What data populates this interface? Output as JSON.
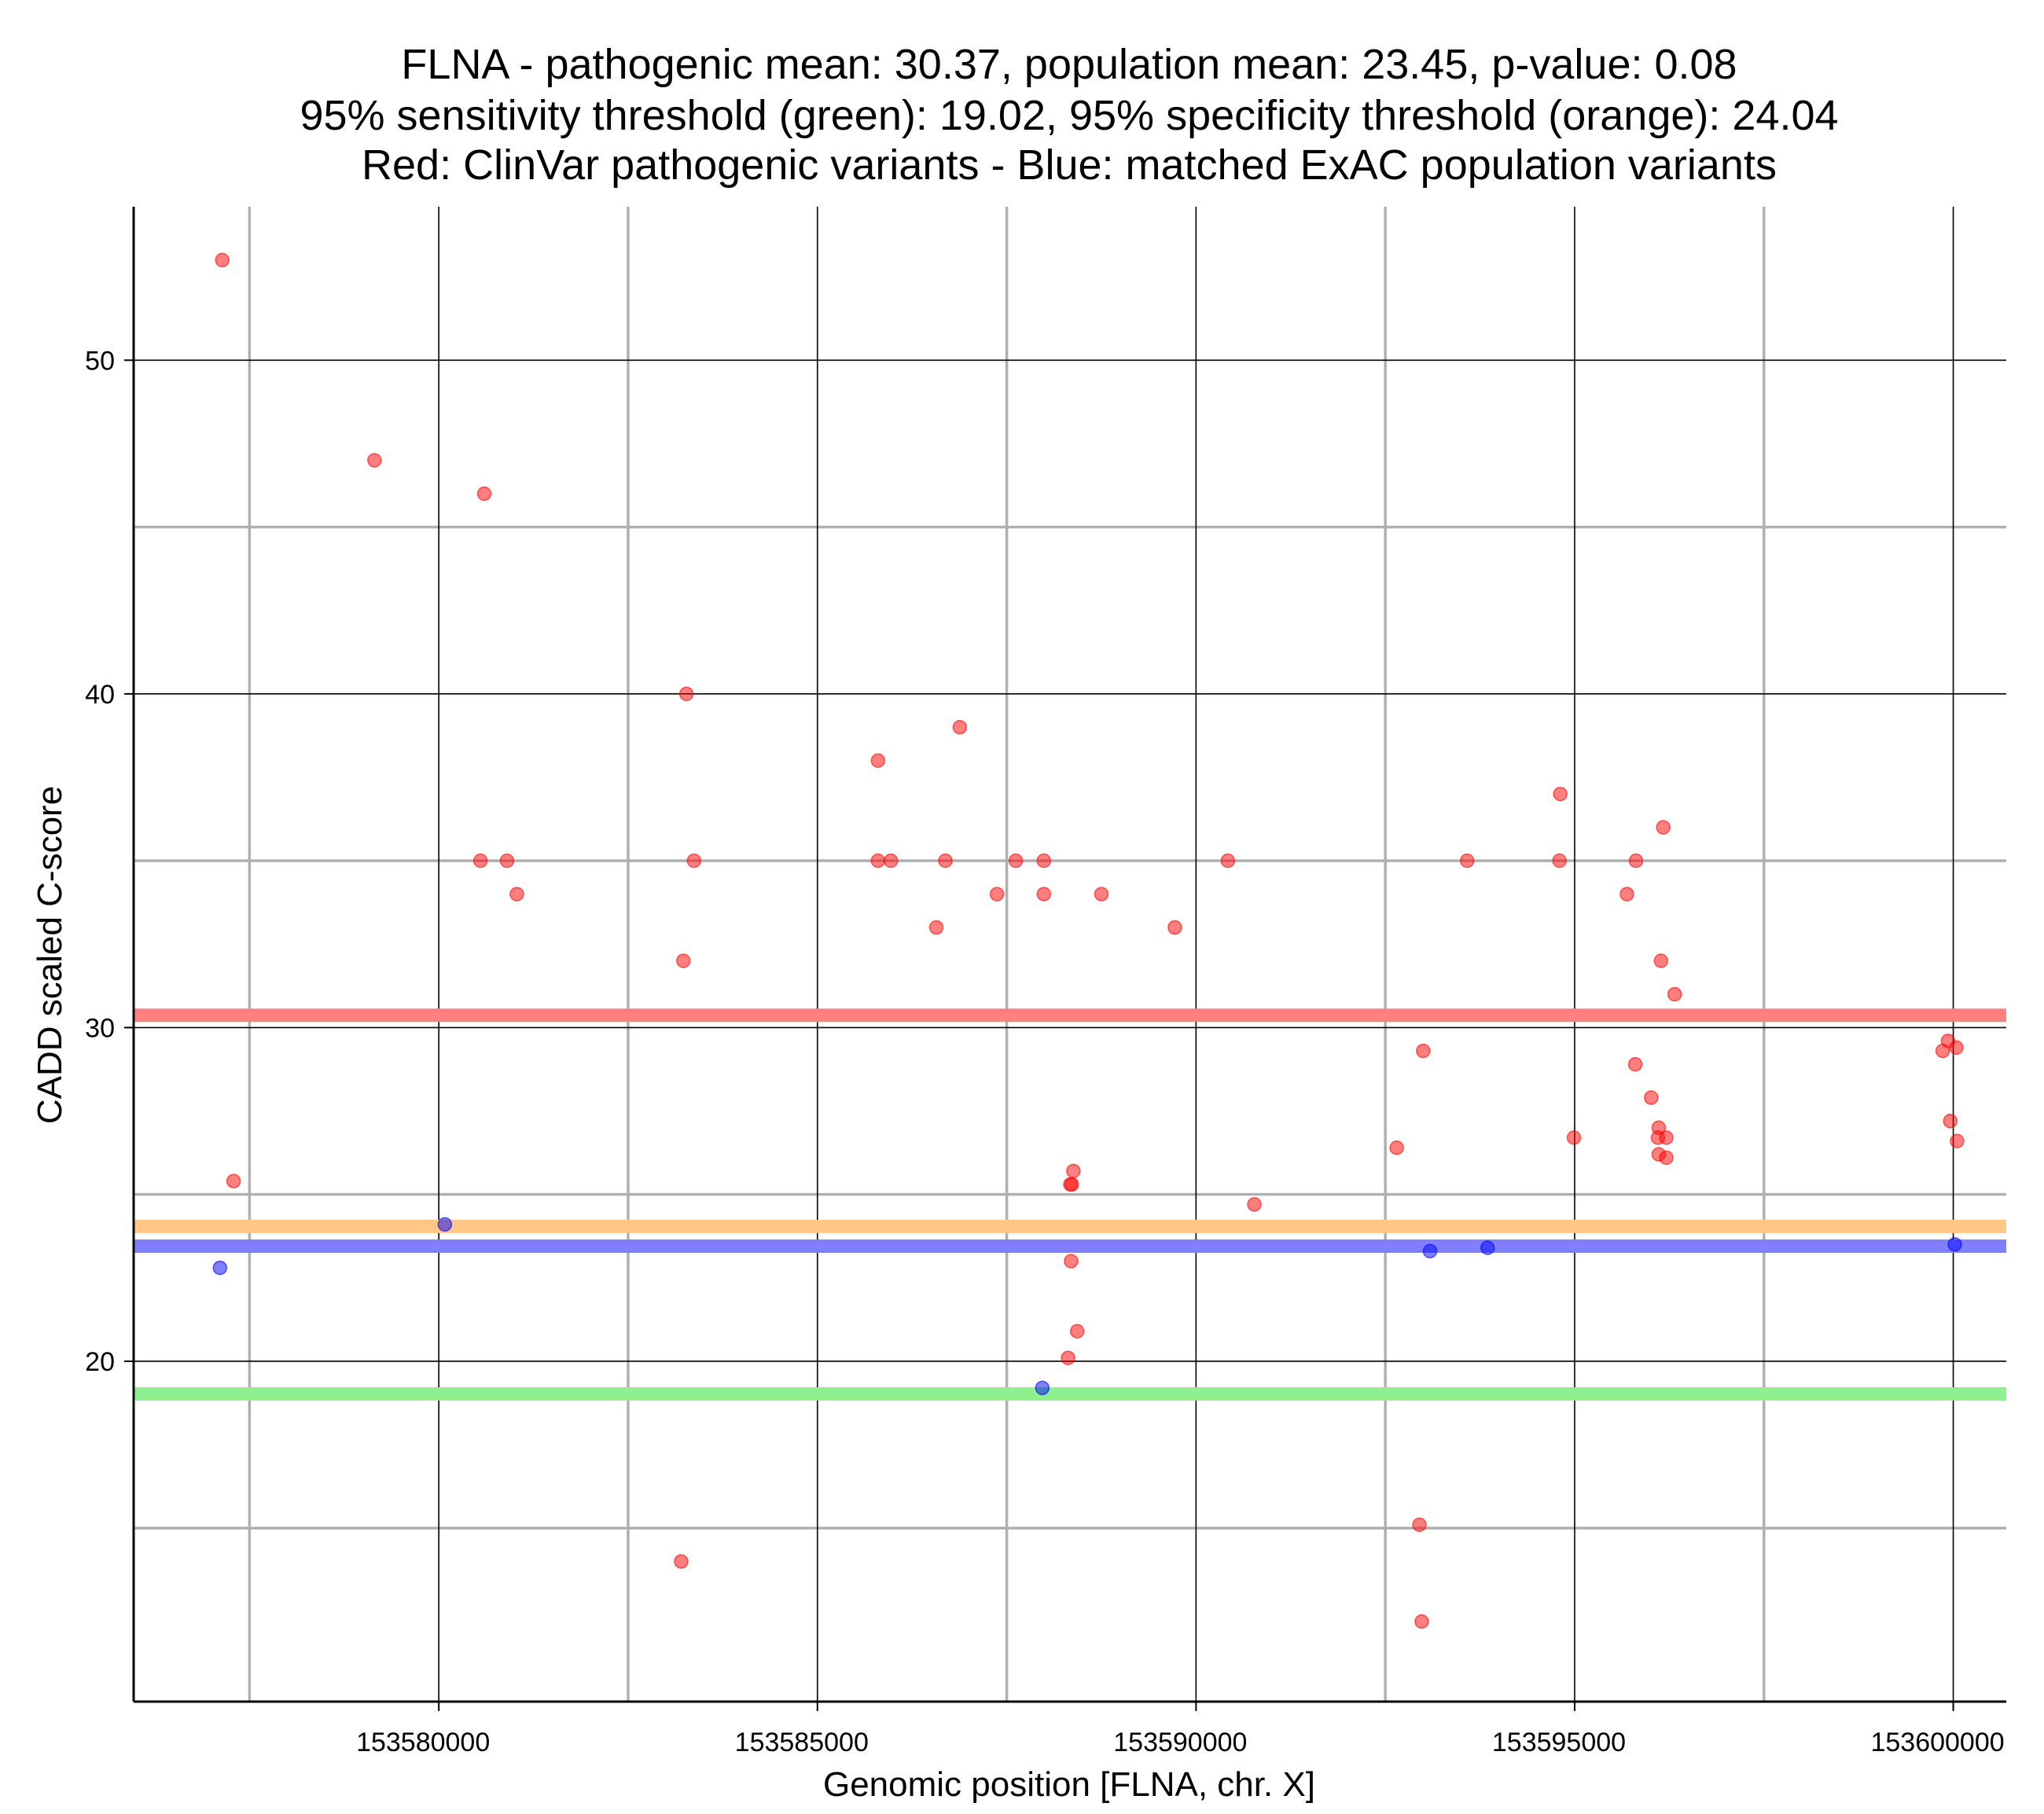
{
  "chart_data": {
    "type": "scatter",
    "title_lines": [
      "FLNA - pathogenic mean: 30.37, population mean: 23.45, p-value: 0.08",
      "95% sensitivity threshold (green): 19.02, 95% specificity threshold (orange): 24.04",
      "Red: ClinVar pathogenic variants - Blue: matched ExAC population variants"
    ],
    "xlabel": "Genomic position [FLNA, chr. X]",
    "ylabel": "CADD scaled C-score",
    "xlim": [
      153575970,
      153600700
    ],
    "ylim": [
      9.8,
      54.6
    ],
    "x_major_ticks": [
      153580000,
      153585000,
      153590000,
      153595000,
      153600000
    ],
    "x_tick_labels": [
      "153580000",
      "153585000",
      "153590000",
      "153595000",
      "153600000"
    ],
    "x_minor_ticks": [
      153577500,
      153582500,
      153587500,
      153592500,
      153597500
    ],
    "y_major_ticks": [
      20,
      30,
      40,
      50
    ],
    "y_tick_labels": [
      "20",
      "30",
      "40",
      "50"
    ],
    "y_minor_ticks": [
      15,
      25,
      35,
      45
    ],
    "grid": true,
    "colors": {
      "pathogenic": "#ff0000",
      "population": "#0000ff",
      "pathogenic_mean": "#ff8080",
      "population_mean": "#8080ff",
      "sensitivity": "#8ef08e",
      "specificity": "#ffc685"
    },
    "reference_lines": [
      {
        "name": "pathogenic mean",
        "y": 30.37,
        "color": "#ff8080"
      },
      {
        "name": "95% specificity threshold",
        "y": 24.04,
        "color": "#ffc685"
      },
      {
        "name": "population mean",
        "y": 23.45,
        "color": "#8080ff"
      },
      {
        "name": "95% sensitivity threshold",
        "y": 19.02,
        "color": "#8ef08e"
      }
    ],
    "series": [
      {
        "name": "ClinVar pathogenic variants",
        "color": "#ff0000",
        "points": [
          [
            153577140,
            53.0
          ],
          [
            153577290,
            25.4
          ],
          [
            153579150,
            47.0
          ],
          [
            153580600,
            46.0
          ],
          [
            153580550,
            35.0
          ],
          [
            153580900,
            35.0
          ],
          [
            153581030,
            34.0
          ],
          [
            153583270,
            40.0
          ],
          [
            153583370,
            35.0
          ],
          [
            153583230,
            32.0
          ],
          [
            153583200,
            14.0
          ],
          [
            153585800,
            38.0
          ],
          [
            153585800,
            35.0
          ],
          [
            153585970,
            35.0
          ],
          [
            153586570,
            33.0
          ],
          [
            153586690,
            35.0
          ],
          [
            153586880,
            39.0
          ],
          [
            153587370,
            34.0
          ],
          [
            153587620,
            35.0
          ],
          [
            153587990,
            35.0
          ],
          [
            153587990,
            34.0
          ],
          [
            153588750,
            34.0
          ],
          [
            153588380,
            25.7
          ],
          [
            153588360,
            25.3
          ],
          [
            153588340,
            25.3
          ],
          [
            153588350,
            23.0
          ],
          [
            153588430,
            20.9
          ],
          [
            153588310,
            20.1
          ],
          [
            153589720,
            33.0
          ],
          [
            153590420,
            35.0
          ],
          [
            153590770,
            24.7
          ],
          [
            153592650,
            26.4
          ],
          [
            153593000,
            29.3
          ],
          [
            153593580,
            35.0
          ],
          [
            153592950,
            15.1
          ],
          [
            153592980,
            12.2
          ],
          [
            153594810,
            37.0
          ],
          [
            153594800,
            35.0
          ],
          [
            153594990,
            26.7
          ],
          [
            153595690,
            34.0
          ],
          [
            153595810,
            35.0
          ],
          [
            153595800,
            28.9
          ],
          [
            153596010,
            27.9
          ],
          [
            153596170,
            36.0
          ],
          [
            153596140,
            32.0
          ],
          [
            153596320,
            31.0
          ],
          [
            153596110,
            27.0
          ],
          [
            153596100,
            26.7
          ],
          [
            153596210,
            26.7
          ],
          [
            153596110,
            26.2
          ],
          [
            153596210,
            26.1
          ],
          [
            153599860,
            29.3
          ],
          [
            153599930,
            29.6
          ],
          [
            153600040,
            29.4
          ],
          [
            153599960,
            27.2
          ],
          [
            153600050,
            26.6
          ]
        ]
      },
      {
        "name": "matched ExAC population variants",
        "color": "#0000ff",
        "points": [
          [
            153577110,
            22.8
          ],
          [
            153580080,
            24.1
          ],
          [
            153593090,
            23.3
          ],
          [
            153593850,
            23.4
          ],
          [
            153600020,
            23.5
          ],
          [
            153587970,
            19.2
          ]
        ]
      }
    ]
  }
}
